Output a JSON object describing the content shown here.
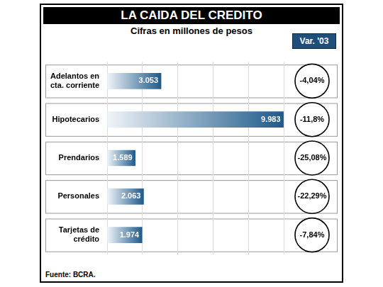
{
  "chart_data": {
    "type": "bar",
    "orientation": "horizontal",
    "title": "LA CAIDA DEL CREDITO",
    "subtitle": "Cifras en millones de pesos",
    "categories": [
      "Adelantos en cta. corriente",
      "Hipotecarios",
      "Prendarios",
      "Personales",
      "Tarjetas de crédito"
    ],
    "values": [
      3053,
      9983,
      1589,
      2063,
      1974
    ],
    "value_labels": [
      "3.053",
      "9.983",
      "1.589",
      "2.063",
      "1.974"
    ],
    "data_labels": true,
    "color": "#1f5a8a",
    "xlim": [
      0,
      10000
    ],
    "xticks": [
      0,
      2000,
      4000,
      6000,
      8000,
      10000
    ],
    "grid": true,
    "tick_labels": "y",
    "variation": {
      "title": "Var. '03",
      "values": [
        -4.04,
        -11.8,
        -25.08,
        -22.29,
        -7.84
      ],
      "value_labels": [
        "-4,04%",
        "-11,8%",
        "-25,08%",
        "-22,29%",
        "-7,84%"
      ]
    },
    "source": "Fuente: BCRA."
  }
}
